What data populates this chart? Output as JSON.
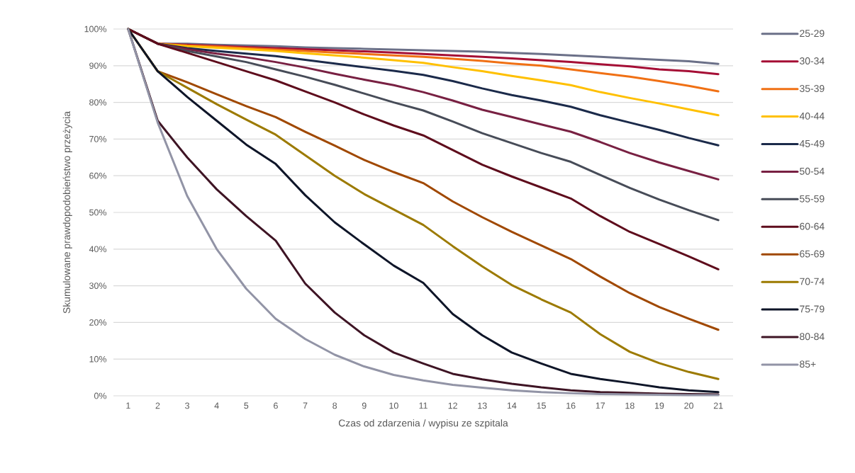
{
  "chart_data": {
    "type": "line",
    "xlabel": "Czas od zdarzenia / wypisu ze szpitala",
    "ylabel": "Skumulowane prawdopodobieństwo przeżycia",
    "x": [
      1,
      2,
      3,
      4,
      5,
      6,
      7,
      8,
      9,
      10,
      11,
      12,
      13,
      14,
      15,
      16,
      17,
      18,
      19,
      20,
      21
    ],
    "xlim": [
      0.5,
      21.5
    ],
    "xticks": [
      1,
      2,
      3,
      4,
      5,
      6,
      7,
      8,
      9,
      10,
      11,
      12,
      13,
      14,
      15,
      16,
      17,
      18,
      19,
      20,
      21
    ],
    "ylim": [
      0,
      100
    ],
    "yticks": [
      {
        "value": 0,
        "label": "0%"
      },
      {
        "value": 10,
        "label": "10%"
      },
      {
        "value": 20,
        "label": "20%"
      },
      {
        "value": 30,
        "label": "30%"
      },
      {
        "value": 40,
        "label": "40%"
      },
      {
        "value": 50,
        "label": "50%"
      },
      {
        "value": 60,
        "label": "60%"
      },
      {
        "value": 70,
        "label": "70%"
      },
      {
        "value": 80,
        "label": "80%"
      },
      {
        "value": 90,
        "label": "90%"
      },
      {
        "value": 100,
        "label": "100%"
      }
    ],
    "grid": "y",
    "legend": "right",
    "marker": "none",
    "line_style": "solid",
    "series": [
      {
        "name": "25-29",
        "color": "#6b7088",
        "values": [
          100,
          96,
          96,
          95.7,
          95.5,
          95.3,
          95,
          94.8,
          94.6,
          94.4,
          94.2,
          94,
          93.8,
          93.5,
          93.2,
          92.8,
          92.4,
          92,
          91.6,
          91.2,
          90.5
        ]
      },
      {
        "name": "30-34",
        "color": "#a50e35",
        "values": [
          100,
          96,
          95.7,
          95.4,
          95.1,
          94.8,
          94.5,
          94.2,
          93.9,
          93.6,
          93.2,
          92.8,
          92.4,
          92,
          91.5,
          91,
          90.4,
          89.8,
          89,
          88.5,
          87.7
        ]
      },
      {
        "name": "35-39",
        "color": "#f07014",
        "values": [
          100,
          96,
          95.5,
          95.2,
          94.8,
          94.4,
          94,
          93.6,
          93.2,
          92.8,
          92.4,
          91.9,
          91.3,
          90.6,
          90,
          89,
          88,
          87,
          85.8,
          84.5,
          83
        ]
      },
      {
        "name": "40-44",
        "color": "#ffc000",
        "values": [
          100,
          96,
          95.3,
          94.9,
          94.5,
          94,
          93.4,
          92.8,
          92.2,
          91.5,
          90.8,
          89.6,
          88.5,
          87.2,
          86,
          84.7,
          82.8,
          81.2,
          79.7,
          78.1,
          76.5
        ]
      },
      {
        "name": "45-49",
        "color": "#1b2a4a",
        "values": [
          100,
          96,
          94.8,
          94,
          93.3,
          92.6,
          91.6,
          90.6,
          89.6,
          88.6,
          87.5,
          85.8,
          83.8,
          82,
          80.5,
          78.8,
          76.5,
          74.5,
          72.5,
          70.3,
          68.3
        ]
      },
      {
        "name": "50-54",
        "color": "#782042",
        "values": [
          100,
          96,
          94.5,
          93.3,
          92.3,
          91,
          89.5,
          87.8,
          86.2,
          84.7,
          82.8,
          80.5,
          78,
          76,
          74,
          72,
          69.2,
          66.2,
          63.6,
          61.3,
          59
        ]
      },
      {
        "name": "55-59",
        "color": "#474c58",
        "values": [
          100,
          96,
          94,
          92.5,
          91,
          89,
          87,
          84.8,
          82.4,
          80,
          77.8,
          74.8,
          71.6,
          68.9,
          66.2,
          63.8,
          60.2,
          56.7,
          53.5,
          50.6,
          47.9
        ]
      },
      {
        "name": "60-64",
        "color": "#5e0c1c",
        "values": [
          100,
          96,
          93.5,
          91,
          88.5,
          86,
          83,
          80,
          76.7,
          73.7,
          71,
          67,
          63,
          59.8,
          56.8,
          53.8,
          49,
          44.7,
          41.4,
          38,
          34.5
        ]
      },
      {
        "name": "65-69",
        "color": "#a04800",
        "values": [
          100,
          88.5,
          85.5,
          82.2,
          79,
          76,
          72,
          68.2,
          64.3,
          61,
          58,
          53,
          48.7,
          44.7,
          41,
          37.3,
          32.5,
          28,
          24.2,
          21,
          18
        ]
      },
      {
        "name": "70-74",
        "color": "#9c7a00",
        "values": [
          100,
          88.5,
          84,
          79.5,
          75.3,
          71.2,
          65.6,
          60,
          55,
          50.8,
          46.6,
          40.8,
          35.3,
          30.2,
          26.3,
          22.7,
          16.8,
          12,
          8.9,
          6.5,
          4.6
        ]
      },
      {
        "name": "75-79",
        "color": "#0e1528",
        "values": [
          100,
          88.5,
          81.5,
          75,
          68.5,
          63.2,
          54.7,
          47.3,
          41.3,
          35.5,
          30.8,
          22.3,
          16.5,
          11.8,
          8.8,
          6,
          4.6,
          3.5,
          2.3,
          1.5,
          1
        ]
      },
      {
        "name": "80-84",
        "color": "#3e1424",
        "values": [
          100,
          75,
          65,
          56.3,
          49,
          42.3,
          30.6,
          22.7,
          16.5,
          11.8,
          8.8,
          6,
          4.5,
          3.3,
          2.3,
          1.5,
          1,
          0.8,
          0.6,
          0.5,
          0.4
        ]
      },
      {
        "name": "85+",
        "color": "#9294a6",
        "values": [
          100,
          74.5,
          54.5,
          40,
          29.2,
          21,
          15.5,
          11.2,
          8,
          5.7,
          4.2,
          3,
          2.2,
          1.5,
          1,
          0.7,
          0.5,
          0.4,
          0.3,
          0.2,
          0.2
        ]
      }
    ]
  }
}
